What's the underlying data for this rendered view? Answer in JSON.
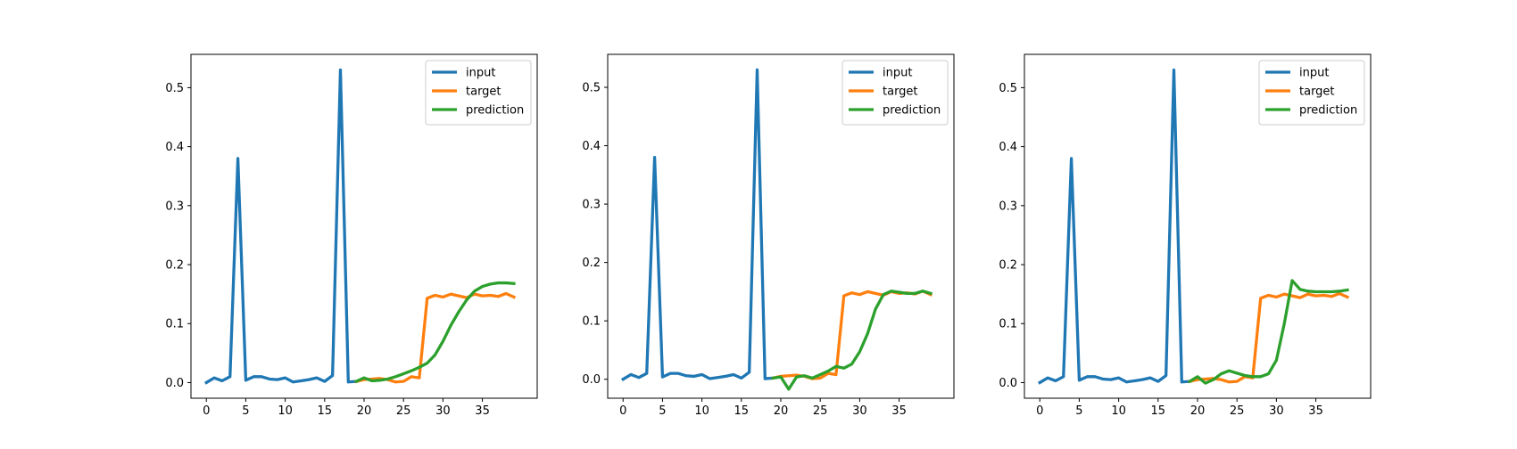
{
  "figure": {
    "legend_position": "top-right",
    "grid": false
  },
  "chart_data": [
    {
      "type": "line",
      "title": "",
      "xlabel": "",
      "ylabel": "",
      "xlim": [
        -1.95,
        41.95
      ],
      "ylim": [
        -0.0265,
        0.5565
      ],
      "xticks": [
        0,
        5,
        10,
        15,
        20,
        25,
        30,
        35
      ],
      "yticks": [
        0.0,
        0.1,
        0.2,
        0.3,
        0.4,
        0.5
      ],
      "ytick_labels": [
        "0.0",
        "0.1",
        "0.2",
        "0.3",
        "0.4",
        "0.5"
      ],
      "series": [
        {
          "name": "input",
          "color": "#1f77b4",
          "x": [
            0,
            1,
            2,
            3,
            4,
            5,
            6,
            7,
            8,
            9,
            10,
            11,
            12,
            13,
            14,
            15,
            16,
            17,
            18,
            19
          ],
          "y": [
            0.0,
            0.008,
            0.003,
            0.01,
            0.38,
            0.004,
            0.01,
            0.01,
            0.006,
            0.005,
            0.008,
            0.001,
            0.003,
            0.005,
            0.008,
            0.002,
            0.012,
            0.53,
            0.001,
            0.002
          ]
        },
        {
          "name": "target",
          "color": "#ff7f0e",
          "x": [
            19,
            20,
            21,
            22,
            23,
            24,
            25,
            26,
            27,
            28,
            29,
            30,
            31,
            32,
            33,
            34,
            35,
            36,
            37,
            38,
            39
          ],
          "y": [
            0.002,
            0.005,
            0.006,
            0.007,
            0.005,
            0.001,
            0.002,
            0.01,
            0.008,
            0.143,
            0.148,
            0.145,
            0.15,
            0.147,
            0.144,
            0.15,
            0.147,
            0.148,
            0.146,
            0.151,
            0.145
          ]
        },
        {
          "name": "prediction",
          "color": "#2ca02c",
          "x": [
            19,
            20,
            21,
            22,
            23,
            24,
            25,
            26,
            27,
            28,
            29,
            30,
            31,
            32,
            33,
            34,
            35,
            36,
            37,
            38,
            39
          ],
          "y": [
            0.002,
            0.008,
            0.003,
            0.004,
            0.006,
            0.01,
            0.015,
            0.02,
            0.026,
            0.033,
            0.047,
            0.07,
            0.097,
            0.12,
            0.14,
            0.155,
            0.163,
            0.167,
            0.169,
            0.169,
            0.168
          ]
        }
      ]
    },
    {
      "type": "line",
      "title": "",
      "xlabel": "",
      "ylabel": "",
      "xlim": [
        -1.95,
        41.95
      ],
      "ylim": [
        -0.0325,
        0.5565
      ],
      "xticks": [
        0,
        5,
        10,
        15,
        20,
        25,
        30,
        35
      ],
      "yticks": [
        0.0,
        0.1,
        0.2,
        0.3,
        0.4,
        0.5
      ],
      "ytick_labels": [
        "0.0",
        "0.1",
        "0.2",
        "0.3",
        "0.4",
        "0.5"
      ],
      "series": [
        {
          "name": "input",
          "color": "#1f77b4",
          "x": [
            0,
            1,
            2,
            3,
            4,
            5,
            6,
            7,
            8,
            9,
            10,
            11,
            12,
            13,
            14,
            15,
            16,
            17,
            18,
            19
          ],
          "y": [
            0.0,
            0.008,
            0.003,
            0.01,
            0.38,
            0.004,
            0.01,
            0.01,
            0.006,
            0.005,
            0.008,
            0.001,
            0.003,
            0.005,
            0.008,
            0.002,
            0.012,
            0.53,
            0.001,
            0.002
          ]
        },
        {
          "name": "target",
          "color": "#ff7f0e",
          "x": [
            19,
            20,
            21,
            22,
            23,
            24,
            25,
            26,
            27,
            28,
            29,
            30,
            31,
            32,
            33,
            34,
            35,
            36,
            37,
            38,
            39
          ],
          "y": [
            0.002,
            0.005,
            0.006,
            0.007,
            0.005,
            0.001,
            0.002,
            0.01,
            0.008,
            0.143,
            0.148,
            0.145,
            0.15,
            0.147,
            0.144,
            0.15,
            0.147,
            0.148,
            0.146,
            0.151,
            0.145
          ]
        },
        {
          "name": "prediction",
          "color": "#2ca02c",
          "x": [
            19,
            20,
            21,
            22,
            23,
            24,
            25,
            26,
            27,
            28,
            29,
            30,
            31,
            32,
            33,
            34,
            35,
            36,
            37,
            38,
            39
          ],
          "y": [
            0.002,
            0.004,
            -0.017,
            0.004,
            0.006,
            0.002,
            0.008,
            0.014,
            0.022,
            0.019,
            0.026,
            0.047,
            0.078,
            0.12,
            0.145,
            0.151,
            0.149,
            0.147,
            0.147,
            0.151,
            0.147
          ]
        }
      ]
    },
    {
      "type": "line",
      "title": "",
      "xlabel": "",
      "ylabel": "",
      "xlim": [
        -1.95,
        41.95
      ],
      "ylim": [
        -0.0265,
        0.5565
      ],
      "xticks": [
        0,
        5,
        10,
        15,
        20,
        25,
        30,
        35
      ],
      "yticks": [
        0.0,
        0.1,
        0.2,
        0.3,
        0.4,
        0.5
      ],
      "ytick_labels": [
        "0.0",
        "0.1",
        "0.2",
        "0.3",
        "0.4",
        "0.5"
      ],
      "series": [
        {
          "name": "input",
          "color": "#1f77b4",
          "x": [
            0,
            1,
            2,
            3,
            4,
            5,
            6,
            7,
            8,
            9,
            10,
            11,
            12,
            13,
            14,
            15,
            16,
            17,
            18,
            19
          ],
          "y": [
            0.0,
            0.008,
            0.003,
            0.01,
            0.38,
            0.004,
            0.01,
            0.01,
            0.006,
            0.005,
            0.008,
            0.001,
            0.003,
            0.005,
            0.008,
            0.002,
            0.012,
            0.53,
            0.001,
            0.002
          ]
        },
        {
          "name": "target",
          "color": "#ff7f0e",
          "x": [
            19,
            20,
            21,
            22,
            23,
            24,
            25,
            26,
            27,
            28,
            29,
            30,
            31,
            32,
            33,
            34,
            35,
            36,
            37,
            38,
            39
          ],
          "y": [
            0.002,
            0.005,
            0.006,
            0.007,
            0.005,
            0.001,
            0.002,
            0.01,
            0.008,
            0.143,
            0.148,
            0.145,
            0.15,
            0.147,
            0.144,
            0.15,
            0.147,
            0.148,
            0.146,
            0.151,
            0.145
          ]
        },
        {
          "name": "prediction",
          "color": "#2ca02c",
          "x": [
            19,
            20,
            21,
            22,
            23,
            24,
            25,
            26,
            27,
            28,
            29,
            30,
            31,
            32,
            33,
            34,
            35,
            36,
            37,
            38,
            39
          ],
          "y": [
            0.002,
            0.01,
            -0.001,
            0.005,
            0.015,
            0.02,
            0.016,
            0.012,
            0.01,
            0.01,
            0.015,
            0.038,
            0.1,
            0.173,
            0.158,
            0.155,
            0.154,
            0.154,
            0.154,
            0.155,
            0.157
          ]
        }
      ]
    }
  ]
}
